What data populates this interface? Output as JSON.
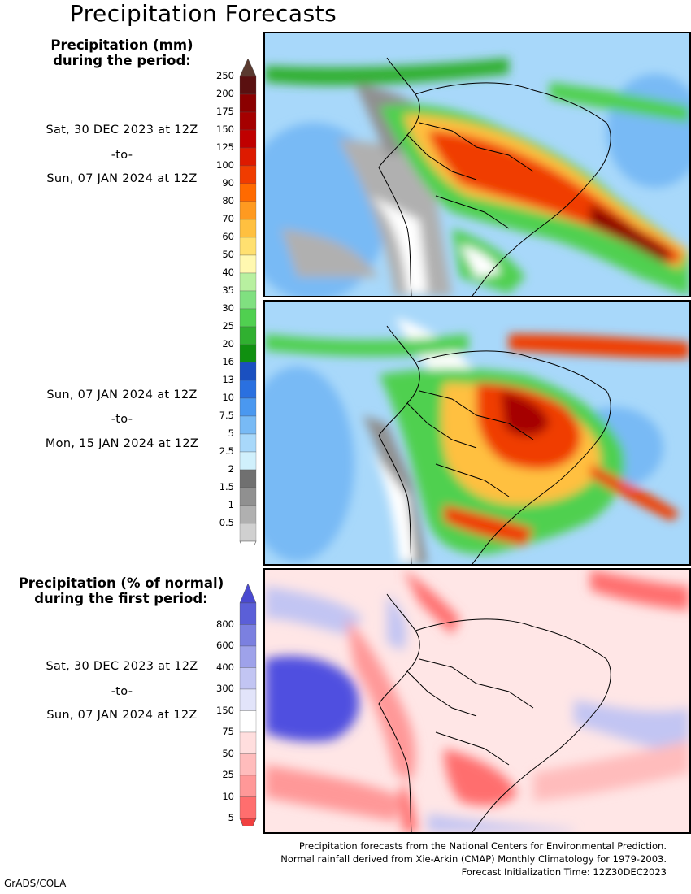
{
  "title": "Precipitation Forecasts",
  "legend_mm": {
    "header_line1": "Precipitation (mm)",
    "header_line2": "during the period:",
    "levels": [
      "250",
      "200",
      "175",
      "150",
      "125",
      "100",
      "90",
      "80",
      "70",
      "60",
      "50",
      "40",
      "35",
      "30",
      "25",
      "20",
      "16",
      "13",
      "10",
      "7.5",
      "5",
      "2.5",
      "2",
      "1.5",
      "1",
      "0.5"
    ],
    "colors": [
      "#5a1010",
      "#8b0000",
      "#a50000",
      "#c00000",
      "#dd1a00",
      "#f03c00",
      "#ff6a00",
      "#ff9a20",
      "#ffc040",
      "#ffe070",
      "#fff8b0",
      "#b8f0a0",
      "#80e080",
      "#50d050",
      "#30b030",
      "#109010",
      "#1a50c0",
      "#2a70e0",
      "#4a98f0",
      "#78baf5",
      "#a8d8fa",
      "#d0f0fc",
      "#707070",
      "#909090",
      "#b0b0b0",
      "#d0d0d0"
    ],
    "top_arrow_color": "#5a3a30"
  },
  "periods": [
    {
      "from": "Sat, 30 DEC 2023 at 12Z",
      "sep": "-to-",
      "to": "Sun, 07 JAN 2024 at 12Z"
    },
    {
      "from": "Sun, 07 JAN 2024 at 12Z",
      "sep": "-to-",
      "to": "Mon, 15 JAN 2024 at 12Z"
    }
  ],
  "legend_pct": {
    "header_line1": "Precipitation (% of normal)",
    "header_line2": "during the first period:",
    "levels": [
      "800",
      "600",
      "400",
      "300",
      "150",
      "75",
      "50",
      "25",
      "10",
      "5"
    ],
    "colors": [
      "#5b5fd8",
      "#7b80e0",
      "#9ea2ea",
      "#c2c5f3",
      "#e2e4fa",
      "#ffffff",
      "#ffdede",
      "#ffbcbc",
      "#ff9898",
      "#ff6e6e"
    ],
    "top_arrow_color": "#4a4ad0",
    "bottom_arrow_color": "#f04040"
  },
  "pct_period": {
    "from": "Sat, 30 DEC 2023 at 12Z",
    "sep": "-to-",
    "to": "Sun, 07 JAN 2024 at 12Z"
  },
  "footer": {
    "line1": "Precipitation forecasts from the National Centers for Environmental Prediction.",
    "line2": "Normal rainfall derived from Xie-Arkin (CMAP) Monthly Climatology for 1979-2003.",
    "line3": "Forecast Initialization Time: 12Z30DEC2023"
  },
  "credit": "GrADS/COLA",
  "colors": {
    "ocean_light": "#a8d8fa",
    "ocean_mid": "#78baf5",
    "dry_land": "#ffffff",
    "gray_band": "#b0b0b0",
    "heavy_red": "#dd1a00",
    "green": "#50d050",
    "pct_blue": "#5050e0",
    "pct_red": "#ff6e6e"
  }
}
